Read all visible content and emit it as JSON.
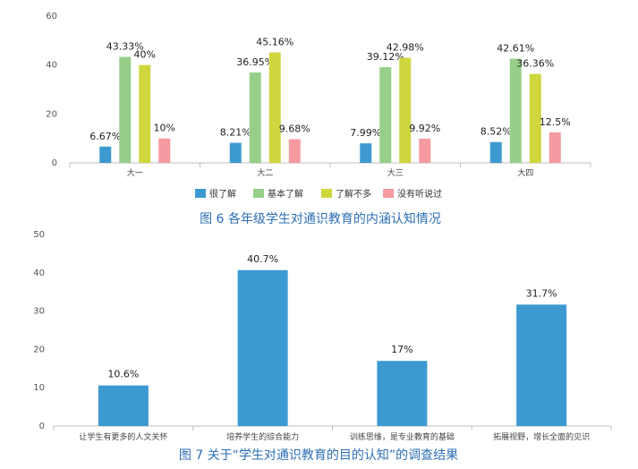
{
  "chart_data": [
    {
      "type": "bar",
      "categories": [
        "大一",
        "大二",
        "大三",
        "大四"
      ],
      "series": [
        {
          "name": "很了解",
          "color": "#3d9ad1",
          "values": [
            6.67,
            8.21,
            7.99,
            8.52
          ],
          "labels": [
            "6.67%",
            "8.21%",
            "7.99%",
            "8.52%"
          ]
        },
        {
          "name": "基本了解",
          "color": "#96cf8a",
          "values": [
            43.33,
            36.95,
            39.12,
            42.61
          ],
          "labels": [
            "43.33%",
            "36.95%",
            "39.12%",
            "42.61%"
          ]
        },
        {
          "name": "了解不多",
          "color": "#cfd63e",
          "values": [
            40,
            45.16,
            42.98,
            36.36
          ],
          "labels": [
            "40%",
            "45.16%",
            "42.98%",
            "36.36%"
          ]
        },
        {
          "name": "没有听说过",
          "color": "#f59aa0",
          "values": [
            10,
            9.68,
            9.92,
            12.5
          ],
          "labels": [
            "10%",
            "9.68%",
            "9.92%",
            "12.5%"
          ]
        }
      ],
      "yticks": [
        "0",
        "20",
        "40",
        "60"
      ],
      "ylim": [
        0,
        60
      ],
      "legend": "bottom",
      "caption": "图 6 各年级学生对通识教育的内涵认知情况"
    },
    {
      "type": "bar",
      "categories": [
        "让学生有更多的人文关怀",
        "培养学生的综合能力",
        "训练思维，是专业教育的基础",
        "拓展视野，增长全面的见识"
      ],
      "series": [
        {
          "color": "#3d9ad1",
          "values": [
            10.6,
            40.7,
            17,
            31.7
          ],
          "labels": [
            "10.6%",
            "40.7%",
            "17%",
            "31.7%"
          ]
        }
      ],
      "yticks": [
        "0",
        "10",
        "20",
        "30",
        "40",
        "50"
      ],
      "ylim": [
        0,
        50
      ],
      "caption": "图 7 关于“学生对通识教育的目的认知”的调查结果"
    }
  ]
}
